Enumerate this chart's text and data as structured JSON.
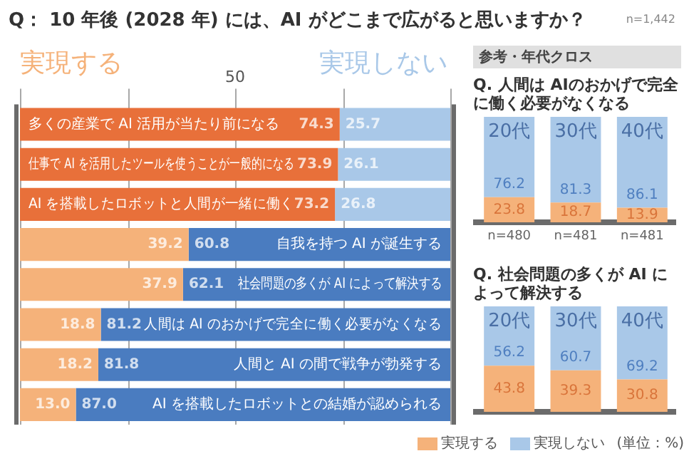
{
  "chart_data": [
    {
      "type": "bar",
      "orientation": "horizontal",
      "stacked": true,
      "title": "Q： 10 年後 (2028 年) には、AI がどこまで広がると思いますか？",
      "annotations": [
        "n=1,442"
      ],
      "categories": [
        "多くの産業で AI 活用が当たり前になる",
        "仕事で AI を活用したツールを使うことが一般的になる",
        "AI を搭載したロボットと人間が一緒に働く",
        "自我を持つ AI が誕生する",
        "社会問題の多くが AI によって解決する",
        "人間は AI のおかげで完全に働く必要がなくなる",
        "人間と AI の間で戦争が勃発する",
        "AI を搭載したロボットとの結婚が認められる"
      ],
      "series": [
        {
          "name": "実現する",
          "color": "#f5b27a",
          "colors": [
            "#e8703a",
            "#e8703a",
            "#e8703a",
            "#f5b27a",
            "#f5b27a",
            "#f5b27a",
            "#f5b27a",
            "#f5b27a"
          ],
          "values": [
            74.3,
            73.9,
            73.2,
            39.2,
            37.9,
            18.8,
            18.2,
            13.0
          ],
          "value_labels": [
            "74.3",
            "73.9",
            "73.2",
            "39.2",
            "37.9",
            "18.8",
            "18.2",
            "13.0"
          ]
        },
        {
          "name": "実現しない",
          "color": "#a9c8e8",
          "colors": [
            "#a9c8e8",
            "#a9c8e8",
            "#a9c8e8",
            "#4a7cc0",
            "#4a7cc0",
            "#4a7cc0",
            "#4a7cc0",
            "#4a7cc0"
          ],
          "values": [
            25.7,
            26.1,
            26.8,
            60.8,
            62.1,
            81.2,
            81.8,
            87.0
          ],
          "value_labels": [
            "25.7",
            "26.1",
            "26.8",
            "60.8",
            "62.1",
            "81.2",
            "81.8",
            "87.0"
          ]
        }
      ],
      "xlim": [
        0,
        100
      ],
      "xticks": [
        {
          "value": 0,
          "label": null
        },
        {
          "value": 25,
          "label": null
        },
        50,
        {
          "value": 75,
          "label": null
        },
        {
          "value": 100,
          "label": null
        }
      ],
      "grid": "x"
    },
    {
      "type": "bar",
      "stacked": true,
      "subtitle": "参考・年代クロス",
      "title": "Q. 人間は AIのおかげで完全に働く必要がなくなる",
      "categories": [
        "20代",
        "30代",
        "40代"
      ],
      "series": [
        {
          "color": "#f5b27a",
          "values": [
            23.8,
            18.7,
            13.9
          ]
        },
        {
          "color": "#a9c8e8",
          "values": [
            76.2,
            81.3,
            86.1
          ]
        }
      ],
      "ylim": [
        0,
        100
      ],
      "data_labels": true,
      "tick_labels": "x",
      "annotations": [
        "n=480",
        "n=481",
        "n=481"
      ]
    },
    {
      "type": "bar",
      "stacked": true,
      "title": "Q. 社会問題の多くが AI によって解決する",
      "categories": [
        "20代",
        "30代",
        "40代"
      ],
      "series": [
        {
          "name": "実現する",
          "color": "#f5b27a",
          "values": [
            43.8,
            39.3,
            30.8
          ]
        },
        {
          "name": "実現しない",
          "color": "#a9c8e8",
          "values": [
            56.2,
            60.7,
            69.2
          ]
        }
      ],
      "ylim": [
        0,
        100
      ],
      "data_labels": true,
      "tick_labels": "x",
      "legend": "bottom",
      "annotations": [
        "(単位：%)"
      ]
    }
  ]
}
